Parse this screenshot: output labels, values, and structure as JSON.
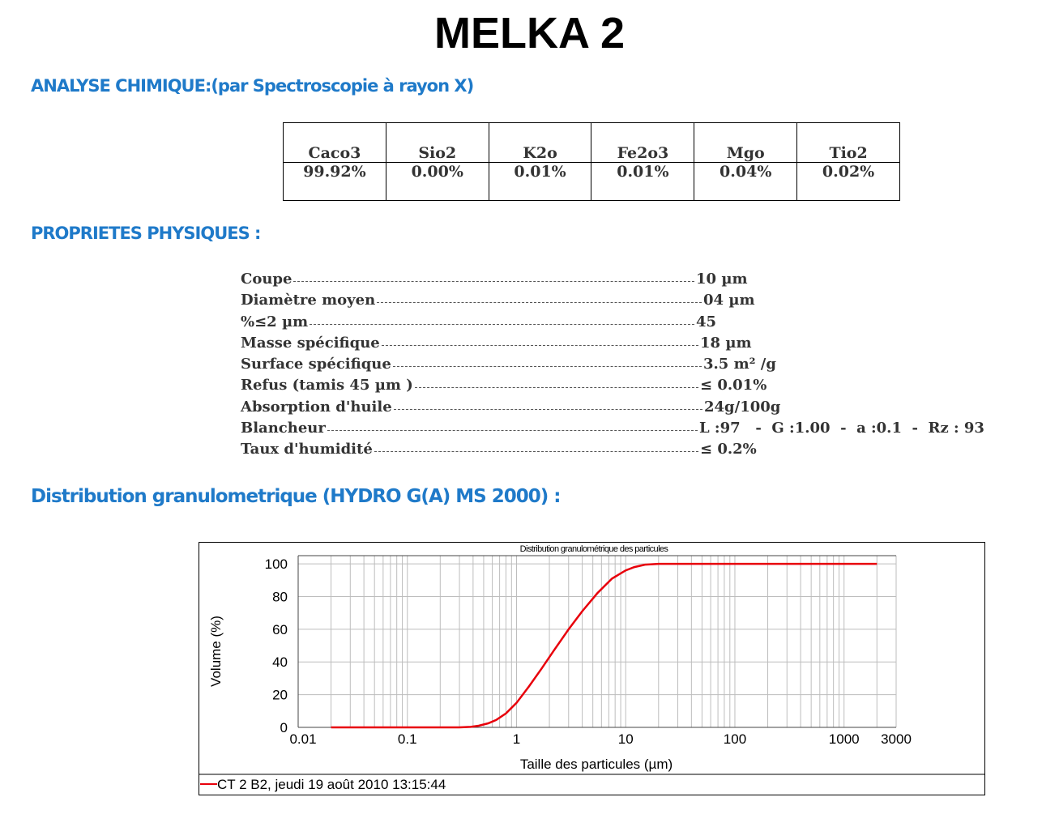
{
  "title": "MELKA 2",
  "chemistry": {
    "heading": "ANALYSE CHIMIQUE:(par Spectroscopie à rayon X)",
    "columns": [
      {
        "name": "Caco3",
        "value": "99.92%"
      },
      {
        "name": "Sio2",
        "value": "0.00%"
      },
      {
        "name": "K2o",
        "value": "0.01%"
      },
      {
        "name": "Fe2o3",
        "value": "0.01%"
      },
      {
        "name": "Mgo",
        "value": "0.04%"
      },
      {
        "name": "Tio2",
        "value": "0.02%"
      }
    ]
  },
  "physical": {
    "heading": "PROPRIETES PHYSIQUES :",
    "rows": [
      {
        "label": "Coupe",
        "value": "10 µm"
      },
      {
        "label": "Diamètre moyen",
        "value": "04 µm"
      },
      {
        "label": "%≤2 µm",
        "value": "45"
      },
      {
        "label": "Masse spécifique",
        "value": "18 µm"
      },
      {
        "label": "Surface spécifique",
        "value": "3.5 m² /g"
      },
      {
        "label": "Refus (tamis 45 µm )",
        "value": "≤ 0.01%"
      },
      {
        "label": "Absorption d'huile",
        "value": "24g/100g"
      },
      {
        "label": "Blancheur",
        "value": "L :97   -  G :1.00  -  a :0.1  -  Rz : 93"
      },
      {
        "label": "Taux d'humidité",
        "value": "≤ 0.2%"
      }
    ]
  },
  "distribution": {
    "heading": "Distribution granulometrique (HYDRO G(A) MS 2000) :"
  },
  "chart_data": {
    "type": "line",
    "title": "Distribution granulométrique des particules",
    "xlabel": "Taille des particules (µm)",
    "ylabel": "Volume (%)",
    "x_scale": "log",
    "xlim": [
      0.01,
      3000
    ],
    "ylim": [
      0,
      105
    ],
    "x_ticks": [
      "0.01",
      "0.1",
      "1",
      "10",
      "100",
      "1000",
      "3000"
    ],
    "y_ticks": [
      "0",
      "20",
      "40",
      "60",
      "80",
      "100"
    ],
    "grid": true,
    "series_color": "#e8000b",
    "legend": "CT 2 B2, jeudi 19 août 2010 13:15:44",
    "series": [
      {
        "name": "CT 2 B2, jeudi 19 août 2010 13:15:44",
        "x": [
          0.02,
          0.1,
          0.3,
          0.38,
          0.45,
          0.55,
          0.65,
          0.8,
          1.0,
          1.3,
          1.7,
          2.2,
          3.0,
          4.0,
          5.5,
          7.5,
          10,
          12,
          15,
          20,
          50,
          100,
          500,
          1000,
          2000
        ],
        "y": [
          0,
          0,
          0,
          0.3,
          1.0,
          2.5,
          4.5,
          8.5,
          15,
          25,
          36,
          47,
          60,
          71,
          82,
          91,
          96,
          98,
          99.5,
          100,
          100,
          100,
          100,
          100,
          100
        ]
      }
    ]
  }
}
